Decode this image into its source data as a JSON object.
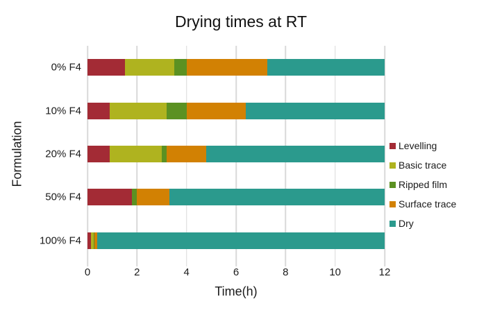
{
  "title": "Drying times at RT",
  "chart_data": {
    "type": "bar",
    "orientation": "horizontal",
    "stacked": true,
    "title": "Drying times at RT",
    "xlabel": "Time(h)",
    "ylabel": "Formulation",
    "categories": [
      "0% F4",
      "10% F4",
      "20% F4",
      "50% F4",
      "100% F4"
    ],
    "series": [
      {
        "name": "Levelling",
        "color": "#A32B35",
        "values": [
          1.5,
          0.9,
          0.9,
          1.8,
          0.15
        ]
      },
      {
        "name": "Basic trace",
        "color": "#AFB31F",
        "values": [
          2.0,
          2.3,
          2.1,
          0.0,
          0.1
        ]
      },
      {
        "name": "Ripped film",
        "color": "#5B9122",
        "values": [
          0.5,
          0.8,
          0.2,
          0.2,
          0.03
        ]
      },
      {
        "name": "Surface trace",
        "color": "#D28103",
        "values": [
          3.25,
          2.4,
          1.6,
          1.3,
          0.1
        ]
      },
      {
        "name": "Dry",
        "color": "#2B9A8D",
        "values": [
          4.75,
          5.6,
          7.2,
          8.7,
          11.62
        ]
      }
    ],
    "xlim": [
      0,
      12
    ],
    "xticks": [
      0,
      2,
      4,
      6,
      8,
      10,
      12
    ],
    "grid": "vertical",
    "gridline_color": "#D9D9D9",
    "legend_position": "right",
    "background": "#FFFFFF"
  }
}
